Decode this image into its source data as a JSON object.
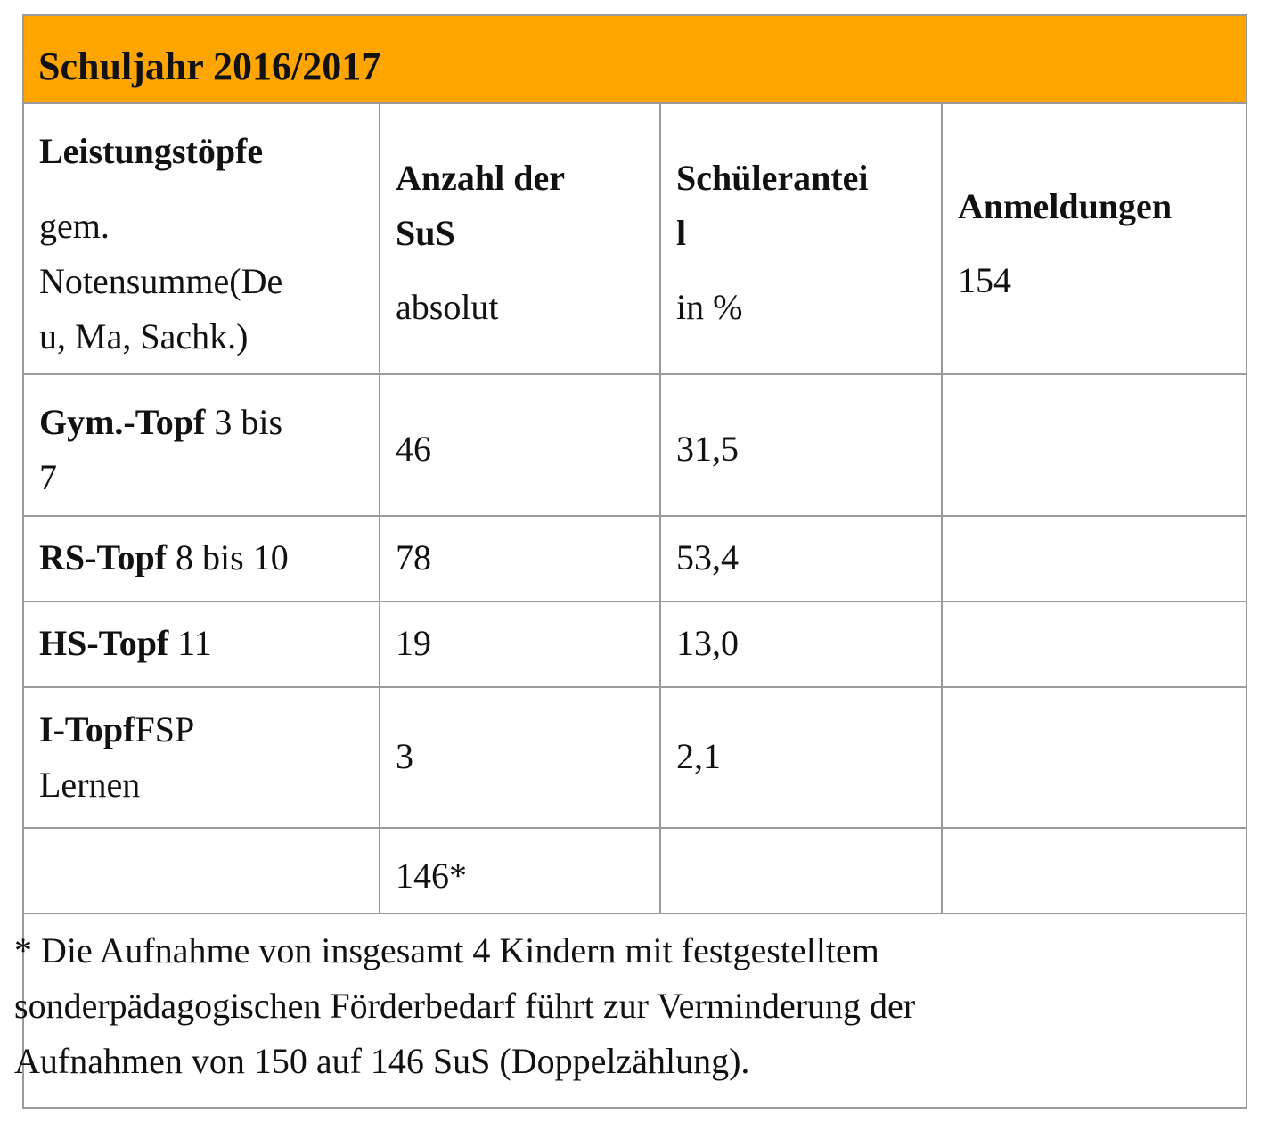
{
  "title": "Schuljahr 2016/2017",
  "header": {
    "col1_bold": "Leistungstöpfe",
    "col1_line1": "gem.",
    "col1_line2": "Notensumme(De",
    "col1_line3": "u, Ma, Sachk.)",
    "col2_bold_line1": "Anzahl der",
    "col2_bold_line2": "SuS",
    "col2_sub": "absolut",
    "col3_bold_line1": "Schülerantei",
    "col3_bold_line2": "l",
    "col3_sub": "in %",
    "col4_bold": "Anmeldungen",
    "col4_value": "154"
  },
  "rows": [
    {
      "label_bold": "Gym.-Topf",
      "label_rest": " 3 bis",
      "label_line2": "7",
      "count": "46",
      "percent": "31,5"
    },
    {
      "label_bold": "RS-Topf",
      "label_rest": " 8 bis 10",
      "label_line2": "",
      "count": "78",
      "percent": "53,4"
    },
    {
      "label_bold": "HS-Topf",
      "label_rest": " 11",
      "label_line2": "",
      "count": "19",
      "percent": "13,0"
    },
    {
      "label_bold": "I-Topf",
      "label_rest": "FSP",
      "label_line2": "Lernen",
      "count": "3",
      "percent": "2,1"
    }
  ],
  "total": "146*",
  "footnote": {
    "line1": "* Die Aufnahme von insgesamt 4 Kindern mit festgestelltem",
    "line2": "sonderpädagogischen Förderbedarf führt zur Verminderung der",
    "line3": "Aufnahmen von 150 auf 146 SuS (Doppelzählung)."
  },
  "colors": {
    "title_bg": "#ffa500",
    "border": "#9a9a9a"
  }
}
